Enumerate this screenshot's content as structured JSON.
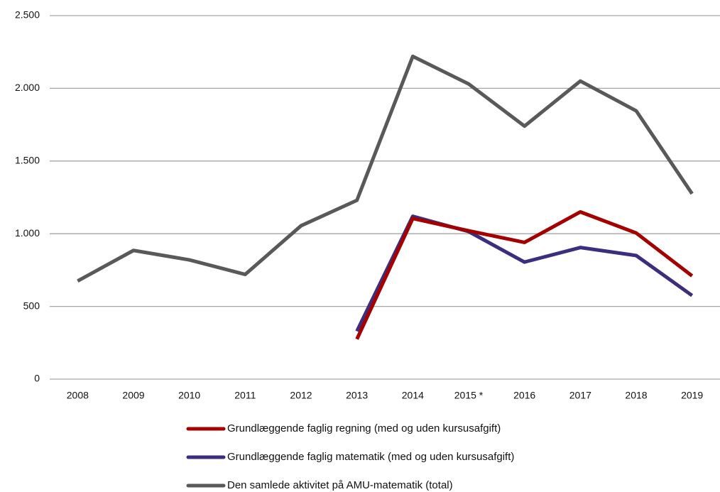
{
  "chart_data": {
    "type": "line",
    "categories": [
      "2008",
      "2009",
      "2010",
      "2011",
      "2012",
      "2013",
      "2014",
      "2015 *",
      "2016",
      "2017",
      "2018",
      "2019"
    ],
    "series": [
      {
        "name": "Grundlæggende faglig regning (med og uden kursusafgift)",
        "color": "#a50000",
        "values": [
          null,
          null,
          null,
          null,
          null,
          275,
          1105,
          1020,
          940,
          1150,
          1005,
          710
        ]
      },
      {
        "name": "Grundlæggende faglig matematik (med og uden kursusafgift)",
        "color": "#3d2d7e",
        "values": [
          null,
          null,
          null,
          null,
          null,
          330,
          1120,
          1015,
          805,
          905,
          850,
          575
        ]
      },
      {
        "name": "Den samlede aktivitet på AMU-matematik (total)",
        "color": "#595959",
        "values": [
          675,
          885,
          820,
          720,
          1055,
          1230,
          2220,
          2030,
          1740,
          2050,
          1845,
          1275
        ]
      }
    ],
    "ylim": [
      0,
      2500
    ],
    "yticks": [
      0,
      500,
      {
        "value": 1000,
        "label": "1.000"
      },
      {
        "value": 1500,
        "label": "1.500"
      },
      {
        "value": 2000,
        "label": "2.000"
      },
      {
        "value": 2500,
        "label": "2.500"
      }
    ],
    "grid": true,
    "legend": "bottom"
  }
}
